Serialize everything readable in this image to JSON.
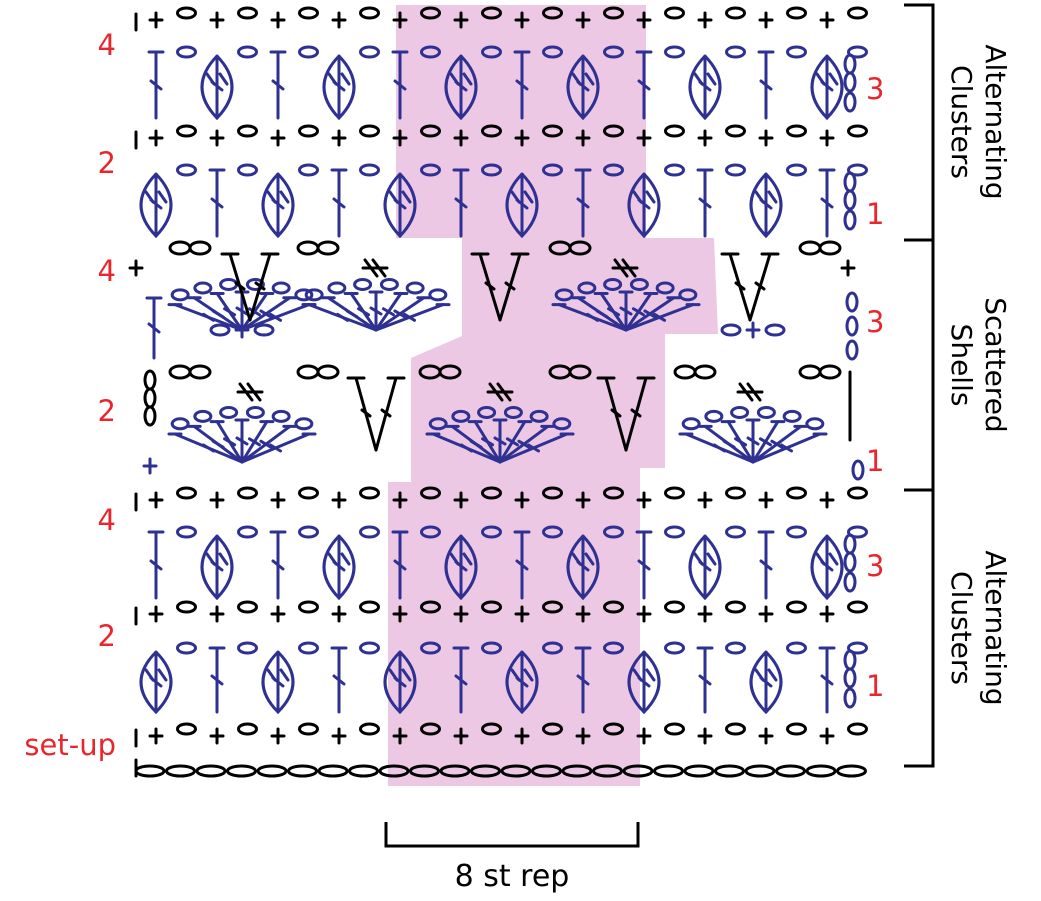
{
  "colors": {
    "highlight": "#ecc8e4",
    "stitch_blue": "#2e3192",
    "stitch_black": "#000000",
    "label_red": "#e8262d",
    "text": "#000000"
  },
  "left_row_labels": [
    {
      "text": "4"
    },
    {
      "text": "2"
    },
    {
      "text": "4"
    },
    {
      "text": "2"
    },
    {
      "text": "4"
    },
    {
      "text": "2"
    },
    {
      "text": "set-up"
    }
  ],
  "right_row_labels": [
    {
      "text": "3"
    },
    {
      "text": "1"
    },
    {
      "text": "3"
    },
    {
      "text": "1"
    },
    {
      "text": "3"
    },
    {
      "text": "1"
    }
  ],
  "sections": [
    {
      "lines": [
        "Alternating",
        "Clusters"
      ]
    },
    {
      "lines": [
        "Scattered",
        "Shells"
      ]
    },
    {
      "lines": [
        "Alternating",
        "Clusters"
      ]
    }
  ],
  "repeat_label": "8 st rep"
}
